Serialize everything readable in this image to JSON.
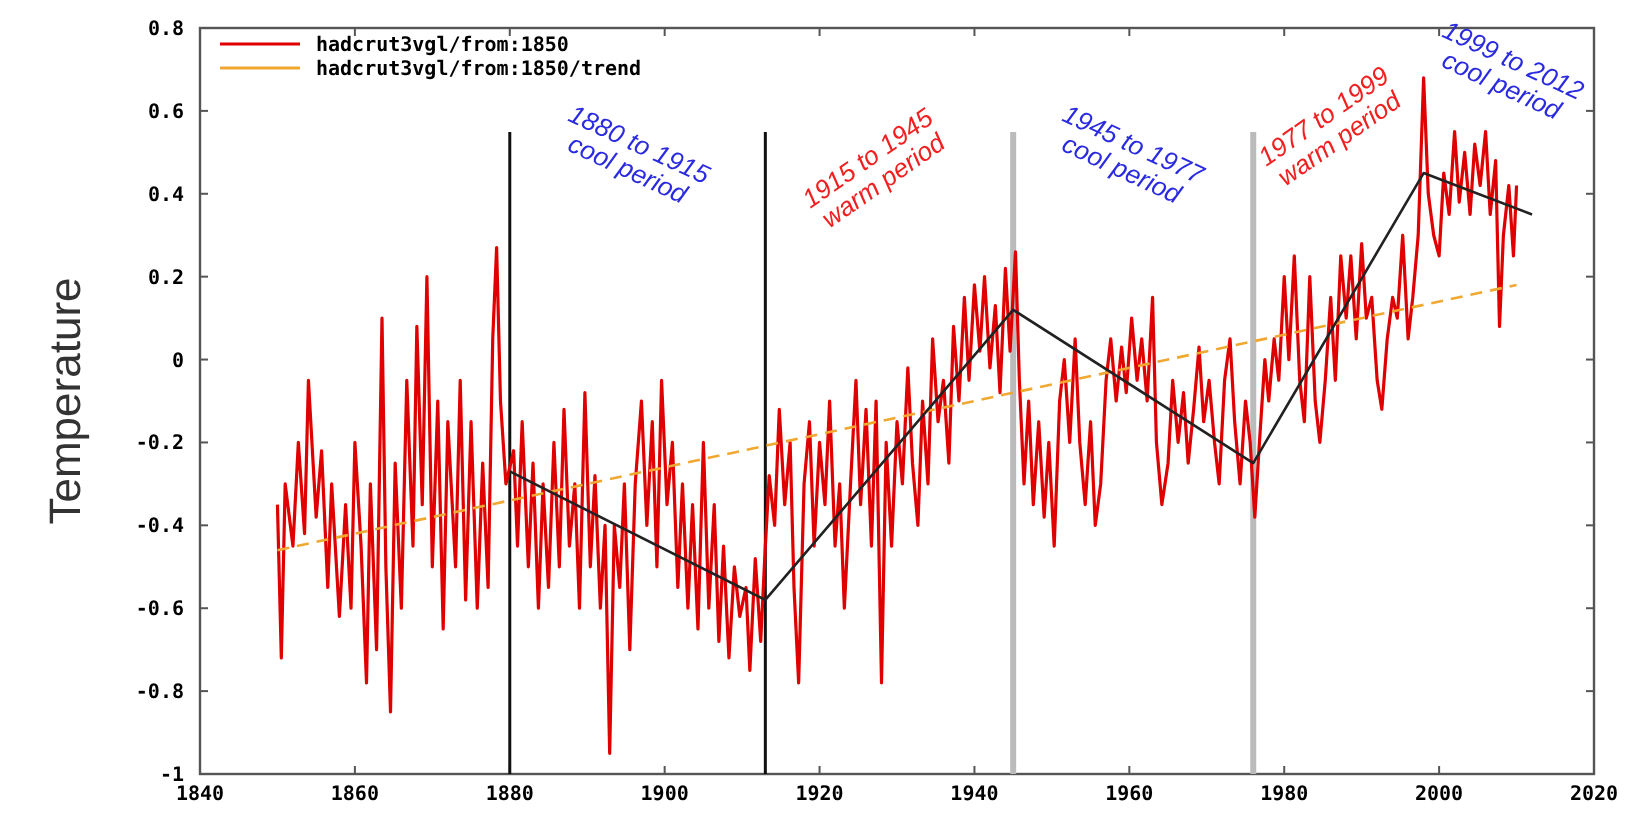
{
  "chart_data": {
    "type": "line",
    "ylabel": "Temperature",
    "xlim": [
      1840,
      2020
    ],
    "xticks": [
      1840,
      1860,
      1880,
      1900,
      1920,
      1940,
      1960,
      1980,
      2000,
      2020
    ],
    "ylim": [
      -1,
      0.8
    ],
    "yticks": [
      -1,
      -0.8,
      -0.6,
      -0.4,
      -0.2,
      0,
      0.2,
      0.4,
      0.6,
      0.8
    ],
    "legend": "top left",
    "marker": "none",
    "line_style": "solid",
    "series": [
      {
        "name": "hadcrut3vgl/from:1850",
        "color": "#e00000",
        "x": [
          1850,
          1850.5,
          1851,
          1852,
          1852.7,
          1853.5,
          1854,
          1855,
          1855.7,
          1856.5,
          1857,
          1858,
          1858.8,
          1859.5,
          1860,
          1860.8,
          1861.5,
          1862,
          1862.8,
          1863.5,
          1864,
          1864.6,
          1865.2,
          1866,
          1866.7,
          1867.5,
          1868,
          1868.7,
          1869.3,
          1870,
          1870.7,
          1871.4,
          1872,
          1873,
          1873.6,
          1874.3,
          1875,
          1875.8,
          1876.5,
          1877.2,
          1877.8,
          1878.3,
          1878.8,
          1879.5,
          1880.5,
          1881,
          1881.6,
          1882.4,
          1883,
          1883.7,
          1884.3,
          1885,
          1885.7,
          1886.4,
          1887,
          1887.7,
          1888.4,
          1889,
          1889.7,
          1890.4,
          1891,
          1891.7,
          1892.3,
          1892.9,
          1893.5,
          1894.2,
          1894.8,
          1895.5,
          1896.2,
          1897,
          1897.7,
          1898.4,
          1899,
          1899.6,
          1900.3,
          1901,
          1901.7,
          1902.3,
          1903,
          1903.6,
          1904.3,
          1905,
          1905.7,
          1906.4,
          1907,
          1907.6,
          1908.3,
          1909,
          1909.7,
          1910.5,
          1911,
          1911.7,
          1912.4,
          1913,
          1913.5,
          1914.2,
          1914.8,
          1915.5,
          1916.2,
          1916.7,
          1917.3,
          1918,
          1918.7,
          1919.3,
          1920,
          1920.7,
          1921.3,
          1922,
          1922.6,
          1923.2,
          1924,
          1924.7,
          1925.3,
          1926,
          1926.7,
          1927.3,
          1928,
          1928.6,
          1929.3,
          1930,
          1930.7,
          1931.4,
          1932,
          1932.7,
          1933.3,
          1934,
          1934.6,
          1935.3,
          1936,
          1936.7,
          1937.3,
          1938,
          1938.7,
          1939.3,
          1940,
          1940.7,
          1941.3,
          1942,
          1942.7,
          1943.3,
          1944,
          1944.6,
          1945.3,
          1945.8,
          1946.4,
          1947,
          1947.6,
          1948.3,
          1949,
          1949.6,
          1950.3,
          1951,
          1951.6,
          1952.3,
          1953,
          1953.6,
          1954.3,
          1955,
          1955.6,
          1956.3,
          1957,
          1957.6,
          1958.3,
          1959,
          1959.6,
          1960.3,
          1961,
          1961.6,
          1962.3,
          1963,
          1963.5,
          1964.2,
          1965,
          1965.6,
          1966.3,
          1967,
          1967.6,
          1968.3,
          1969,
          1969.6,
          1970.3,
          1971,
          1971.6,
          1972.3,
          1973,
          1973.6,
          1974.3,
          1975,
          1975.6,
          1976.2,
          1976.8,
          1977.5,
          1978,
          1978.7,
          1979.3,
          1980,
          1980.6,
          1981.3,
          1982,
          1982.6,
          1983.3,
          1984,
          1984.6,
          1985.3,
          1986,
          1986.6,
          1987.3,
          1988,
          1988.6,
          1989.3,
          1990,
          1990.6,
          1991.3,
          1992,
          1992.6,
          1993.3,
          1994,
          1994.6,
          1995.3,
          1996,
          1996.6,
          1997.3,
          1998,
          1998.6,
          1999.3,
          2000,
          2000.6,
          2001.3,
          2002,
          2002.6,
          2003.3,
          2004,
          2004.6,
          2005.3,
          2006,
          2006.6,
          2007.3,
          2007.8,
          2008.3,
          2009,
          2009.6,
          2010
        ],
        "values": [
          -0.35,
          -0.72,
          -0.3,
          -0.45,
          -0.2,
          -0.42,
          -0.05,
          -0.38,
          -0.22,
          -0.55,
          -0.3,
          -0.62,
          -0.35,
          -0.6,
          -0.2,
          -0.45,
          -0.78,
          -0.3,
          -0.7,
          0.1,
          -0.5,
          -0.85,
          -0.25,
          -0.6,
          -0.05,
          -0.45,
          0.08,
          -0.35,
          0.2,
          -0.5,
          -0.1,
          -0.65,
          -0.15,
          -0.5,
          -0.05,
          -0.58,
          -0.15,
          -0.6,
          -0.25,
          -0.55,
          0.05,
          0.27,
          -0.1,
          -0.3,
          -0.22,
          -0.45,
          -0.15,
          -0.5,
          -0.25,
          -0.6,
          -0.3,
          -0.55,
          -0.2,
          -0.5,
          -0.12,
          -0.45,
          -0.3,
          -0.6,
          -0.08,
          -0.5,
          -0.28,
          -0.6,
          -0.4,
          -0.95,
          -0.4,
          -0.55,
          -0.3,
          -0.7,
          -0.3,
          -0.1,
          -0.4,
          -0.15,
          -0.5,
          -0.05,
          -0.35,
          -0.2,
          -0.55,
          -0.3,
          -0.6,
          -0.35,
          -0.65,
          -0.2,
          -0.6,
          -0.35,
          -0.68,
          -0.45,
          -0.72,
          -0.5,
          -0.62,
          -0.55,
          -0.75,
          -0.48,
          -0.68,
          -0.45,
          -0.28,
          -0.4,
          -0.12,
          -0.35,
          -0.2,
          -0.55,
          -0.78,
          -0.3,
          -0.15,
          -0.45,
          -0.2,
          -0.35,
          -0.1,
          -0.45,
          -0.3,
          -0.6,
          -0.3,
          -0.05,
          -0.35,
          -0.12,
          -0.45,
          -0.1,
          -0.78,
          -0.2,
          -0.45,
          -0.15,
          -0.3,
          -0.02,
          -0.25,
          -0.4,
          -0.1,
          -0.3,
          0.05,
          -0.15,
          -0.05,
          -0.25,
          0.08,
          -0.1,
          0.15,
          -0.05,
          0.18,
          0.02,
          0.2,
          -0.02,
          0.13,
          -0.08,
          0.22,
          0.02,
          0.26,
          -0.05,
          -0.3,
          -0.1,
          -0.35,
          -0.15,
          -0.38,
          -0.2,
          -0.45,
          -0.1,
          0,
          -0.2,
          0.05,
          -0.2,
          -0.35,
          -0.15,
          -0.4,
          -0.3,
          -0.05,
          0.05,
          -0.1,
          0.03,
          -0.08,
          0.1,
          -0.05,
          0.05,
          -0.1,
          0.15,
          -0.2,
          -0.35,
          -0.25,
          -0.05,
          -0.2,
          -0.08,
          -0.25,
          -0.12,
          0.03,
          -0.15,
          -0.05,
          -0.2,
          -0.3,
          -0.05,
          0.05,
          -0.15,
          -0.3,
          -0.1,
          -0.2,
          -0.38,
          -0.2,
          0,
          -0.1,
          0.05,
          -0.05,
          0.2,
          0,
          0.25,
          -0.05,
          -0.15,
          0.2,
          -0.1,
          -0.2,
          -0.05,
          0.15,
          -0.05,
          0.25,
          0.1,
          0.25,
          0.05,
          0.28,
          0.1,
          0.15,
          -0.05,
          -0.12,
          0.05,
          0.15,
          0.1,
          0.3,
          0.05,
          0.15,
          0.3,
          0.68,
          0.4,
          0.3,
          0.25,
          0.45,
          0.35,
          0.55,
          0.38,
          0.5,
          0.35,
          0.52,
          0.42,
          0.55,
          0.35,
          0.48,
          0.08,
          0.3,
          0.42,
          0.25,
          0.42
        ]
      },
      {
        "name": "hadcrut3vgl/from:1850/trend",
        "color": "#f0a830",
        "line_style": "dashed",
        "x": [
          1850,
          2010
        ],
        "values": [
          -0.46,
          0.18
        ]
      },
      {
        "color": "#222222",
        "x": [
          1880,
          1913,
          1945,
          1976,
          1998,
          2012
        ],
        "values": [
          -0.27,
          -0.58,
          0.12,
          -0.25,
          0.45,
          0.35
        ]
      }
    ],
    "ref_lines": [
      {
        "axis": "x",
        "value": 1880,
        "color": "#111111"
      },
      {
        "axis": "x",
        "value": 1913,
        "color": "#111111"
      },
      {
        "axis": "x",
        "value": 1945,
        "color": "#bbbbbb"
      },
      {
        "axis": "x",
        "value": 1976,
        "color": "#bbbbbb"
      }
    ],
    "annotations": [
      "1880 to 1915\ncool period",
      "1915 to 1945\nwarm period",
      "1945 to 1977\ncool period",
      "1977 to 1999\nwarm period",
      "1999 to 2012\ncool period"
    ]
  }
}
